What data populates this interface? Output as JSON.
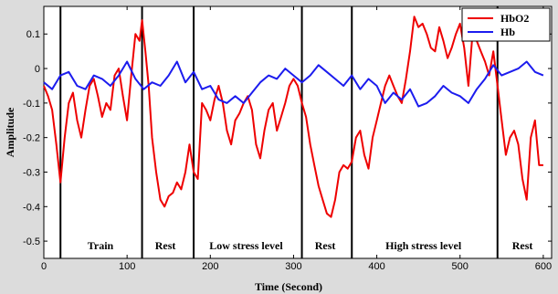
{
  "chart_data": {
    "type": "line",
    "title": "",
    "xlabel": "Time (Second)",
    "ylabel": "Amplitude",
    "xlim": [
      0,
      610
    ],
    "ylim": [
      -0.55,
      0.18
    ],
    "xticks": [
      0,
      100,
      200,
      300,
      400,
      500,
      600
    ],
    "yticks": [
      0.1,
      0,
      -0.1,
      -0.2,
      -0.3,
      -0.4,
      -0.5
    ],
    "xtick_labels": [
      "0",
      "100",
      "200",
      "300",
      "400",
      "500",
      "600"
    ],
    "ytick_labels": [
      "0.1",
      "0",
      "-0.1",
      "-0.2",
      "-0.3",
      "-0.4",
      "-0.5"
    ],
    "grid": false,
    "legend_position": "top-right",
    "phase_boundaries": [
      20,
      118,
      180,
      310,
      370,
      545
    ],
    "phases": [
      {
        "label": "Train",
        "x": 68
      },
      {
        "label": "Rest",
        "x": 146
      },
      {
        "label": "Low stress level",
        "x": 243
      },
      {
        "label": "Rest",
        "x": 338
      },
      {
        "label": "High stress level",
        "x": 456
      },
      {
        "label": "Rest",
        "x": 575
      }
    ],
    "series": [
      {
        "name": "HbO2",
        "color": "#ee0000",
        "x": [
          0,
          5,
          10,
          15,
          20,
          25,
          30,
          35,
          40,
          45,
          50,
          55,
          60,
          65,
          70,
          75,
          80,
          85,
          90,
          95,
          100,
          105,
          110,
          115,
          118,
          122,
          126,
          130,
          135,
          140,
          145,
          150,
          155,
          160,
          165,
          170,
          175,
          180,
          185,
          190,
          195,
          200,
          205,
          210,
          215,
          220,
          225,
          230,
          235,
          240,
          245,
          250,
          255,
          260,
          265,
          270,
          275,
          280,
          285,
          290,
          295,
          300,
          305,
          310,
          315,
          320,
          325,
          330,
          335,
          340,
          345,
          350,
          355,
          360,
          365,
          370,
          375,
          380,
          385,
          390,
          395,
          400,
          405,
          410,
          415,
          420,
          425,
          430,
          435,
          440,
          445,
          450,
          455,
          460,
          465,
          470,
          475,
          480,
          485,
          490,
          495,
          500,
          505,
          510,
          515,
          520,
          525,
          530,
          535,
          540,
          545,
          550,
          555,
          560,
          565,
          570,
          575,
          580,
          585,
          590,
          595,
          600
        ],
        "values": [
          -0.05,
          -0.08,
          -0.12,
          -0.22,
          -0.33,
          -0.2,
          -0.1,
          -0.07,
          -0.15,
          -0.2,
          -0.12,
          -0.05,
          -0.03,
          -0.08,
          -0.14,
          -0.1,
          -0.12,
          -0.02,
          0.0,
          -0.08,
          -0.15,
          -0.02,
          0.1,
          0.08,
          0.14,
          0.05,
          -0.05,
          -0.2,
          -0.3,
          -0.38,
          -0.4,
          -0.37,
          -0.36,
          -0.33,
          -0.35,
          -0.3,
          -0.22,
          -0.3,
          -0.32,
          -0.1,
          -0.12,
          -0.15,
          -0.09,
          -0.05,
          -0.1,
          -0.18,
          -0.22,
          -0.15,
          -0.13,
          -0.1,
          -0.08,
          -0.12,
          -0.22,
          -0.26,
          -0.18,
          -0.12,
          -0.1,
          -0.18,
          -0.14,
          -0.1,
          -0.05,
          -0.03,
          -0.05,
          -0.1,
          -0.14,
          -0.22,
          -0.28,
          -0.34,
          -0.38,
          -0.42,
          -0.43,
          -0.38,
          -0.3,
          -0.28,
          -0.29,
          -0.27,
          -0.2,
          -0.18,
          -0.25,
          -0.29,
          -0.2,
          -0.15,
          -0.1,
          -0.05,
          -0.02,
          -0.05,
          -0.08,
          -0.1,
          -0.03,
          0.05,
          0.15,
          0.12,
          0.13,
          0.1,
          0.06,
          0.05,
          0.12,
          0.08,
          0.03,
          0.06,
          0.1,
          0.13,
          0.06,
          -0.05,
          0.1,
          0.08,
          0.05,
          0.02,
          -0.02,
          0.05,
          -0.05,
          -0.15,
          -0.25,
          -0.2,
          -0.18,
          -0.22,
          -0.32,
          -0.38,
          -0.2,
          -0.15,
          -0.28,
          -0.28
        ]
      },
      {
        "name": "Hb",
        "color": "#1c1cee",
        "x": [
          0,
          10,
          20,
          30,
          40,
          50,
          60,
          70,
          80,
          90,
          100,
          110,
          120,
          130,
          140,
          150,
          160,
          170,
          180,
          190,
          200,
          210,
          220,
          230,
          240,
          250,
          260,
          270,
          280,
          290,
          300,
          310,
          320,
          330,
          340,
          350,
          360,
          370,
          380,
          390,
          400,
          410,
          420,
          430,
          440,
          450,
          460,
          470,
          480,
          490,
          500,
          510,
          520,
          530,
          540,
          550,
          560,
          570,
          580,
          590,
          600
        ],
        "values": [
          -0.04,
          -0.06,
          -0.02,
          -0.01,
          -0.05,
          -0.06,
          -0.02,
          -0.03,
          -0.05,
          -0.02,
          0.02,
          -0.03,
          -0.06,
          -0.04,
          -0.05,
          -0.02,
          0.02,
          -0.04,
          -0.01,
          -0.06,
          -0.05,
          -0.09,
          -0.1,
          -0.08,
          -0.1,
          -0.07,
          -0.04,
          -0.02,
          -0.03,
          0.0,
          -0.02,
          -0.04,
          -0.02,
          0.01,
          -0.01,
          -0.03,
          -0.05,
          -0.02,
          -0.06,
          -0.03,
          -0.05,
          -0.1,
          -0.07,
          -0.09,
          -0.06,
          -0.11,
          -0.1,
          -0.08,
          -0.05,
          -0.07,
          -0.08,
          -0.1,
          -0.06,
          -0.03,
          0.01,
          -0.02,
          -0.01,
          0.0,
          0.02,
          -0.01,
          -0.02
        ]
      }
    ]
  }
}
